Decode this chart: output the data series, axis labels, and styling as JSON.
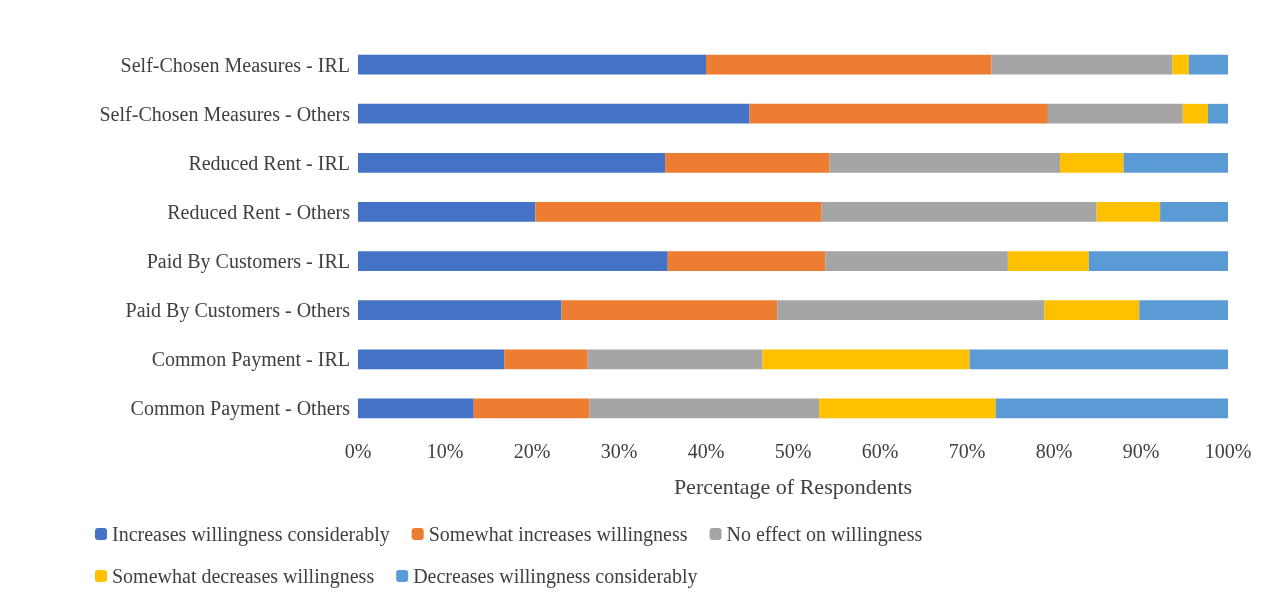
{
  "chart_data": {
    "type": "bar",
    "orientation": "horizontal",
    "stacked": true,
    "xlabel": "Percentage of Respondents",
    "categories": [
      "Self-Chosen Measures - IRL",
      "Self-Chosen Measures - Others",
      "Reduced Rent - IRL",
      "Reduced Rent - Others",
      "Paid By Customers - IRL",
      "Paid By Customers - Others",
      "Common Payment - IRL",
      "Common Payment - Others"
    ],
    "series": [
      {
        "name": "Increases willingness considerably",
        "color": "#4472c4",
        "values": [
          40,
          45,
          35.3,
          20.4,
          35.6,
          23.4,
          16.8,
          13.3
        ]
      },
      {
        "name": "Somewhat increases willingness",
        "color": "#ed7d31",
        "values": [
          32.8,
          34.3,
          18.9,
          32.9,
          18.1,
          24.8,
          9.6,
          13.3
        ]
      },
      {
        "name": "No effect on willingness",
        "color": "#a5a5a5",
        "values": [
          20.8,
          15.5,
          26.5,
          31.6,
          21,
          30.7,
          20.1,
          26.4
        ]
      },
      {
        "name": "Somewhat decreases willingness",
        "color": "#ffc000",
        "values": [
          1.9,
          2.9,
          7.3,
          7.3,
          9.3,
          10.9,
          23.8,
          20.3
        ]
      },
      {
        "name": "Decreases willingness considerably",
        "color": "#5b9bd5",
        "values": [
          4.5,
          2.3,
          12,
          7.8,
          16,
          10.2,
          29.7,
          26.7
        ]
      }
    ],
    "xlim": [
      0,
      100
    ],
    "xticks": [
      {
        "value": 0,
        "label": "0%"
      },
      {
        "value": 10,
        "label": "10%"
      },
      {
        "value": 20,
        "label": "20%"
      },
      {
        "value": 30,
        "label": "30%"
      },
      {
        "value": 40,
        "label": "40%"
      },
      {
        "value": 50,
        "label": "50%"
      },
      {
        "value": 60,
        "label": "60%"
      },
      {
        "value": 70,
        "label": "70%"
      },
      {
        "value": 80,
        "label": "80%"
      },
      {
        "value": 90,
        "label": "90%"
      },
      {
        "value": 100,
        "label": "100%"
      }
    ],
    "grid": false,
    "legend": "bottom"
  }
}
